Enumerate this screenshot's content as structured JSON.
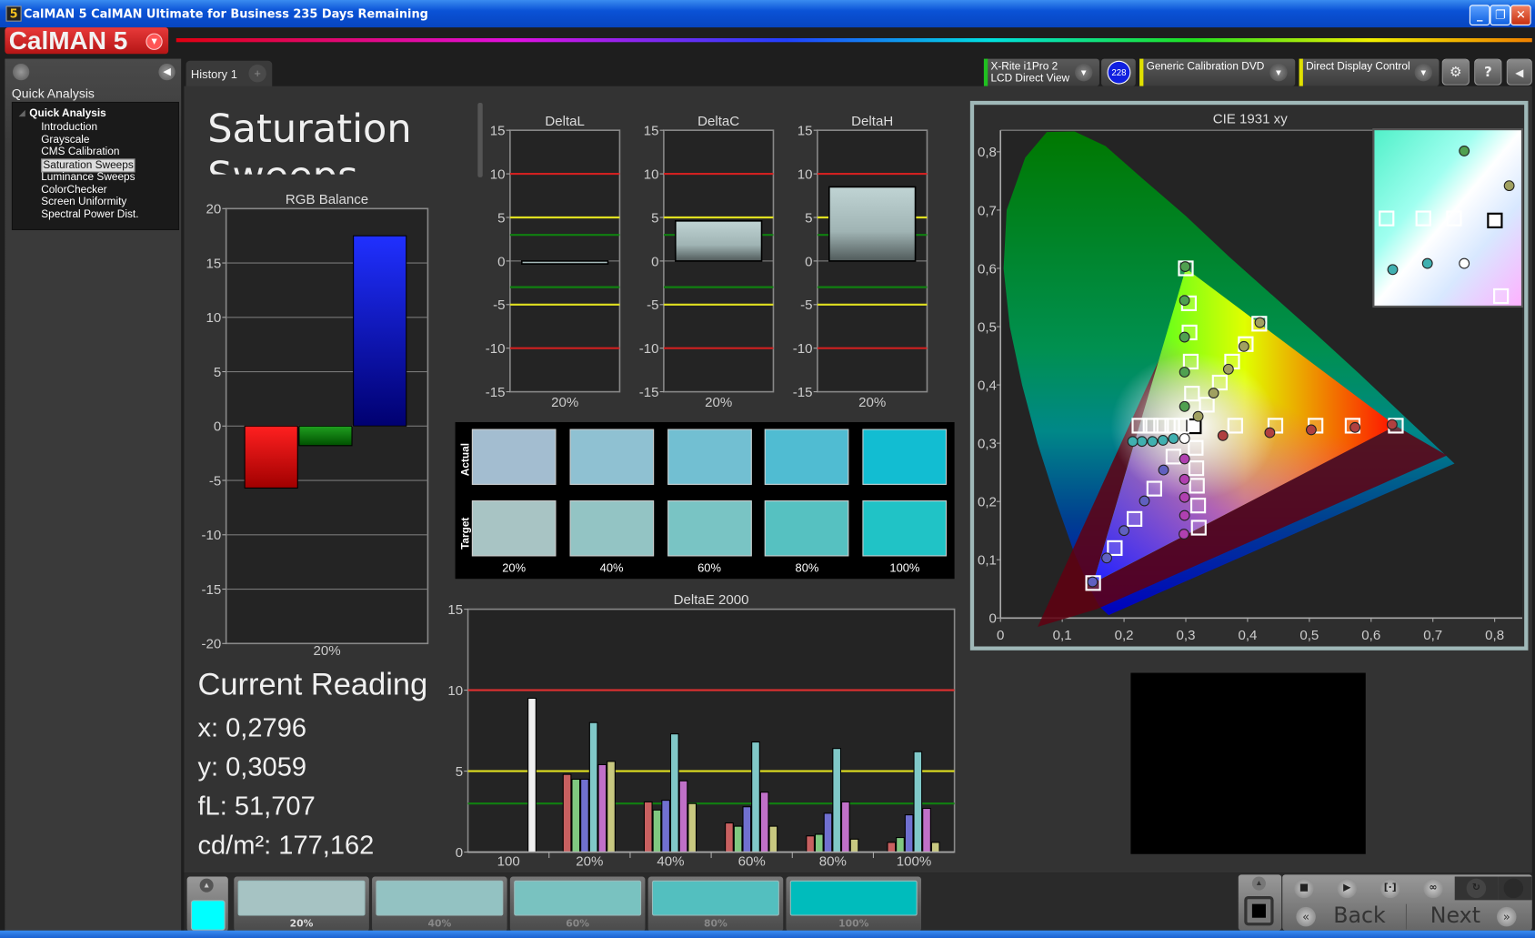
{
  "window": {
    "title": "CalMAN 5 CalMAN Ultimate for Business 235 Days Remaining",
    "app_icon": "5",
    "controls": [
      "minimize-icon",
      "restore-icon",
      "close-icon"
    ]
  },
  "logo": {
    "text": "CalMAN 5"
  },
  "sidebar": {
    "section_label": "Quick Analysis",
    "tree_root": "Quick Analysis",
    "items": [
      {
        "label": "Introduction"
      },
      {
        "label": "Grayscale"
      },
      {
        "label": "CMS Calibration"
      },
      {
        "label": "Saturation Sweeps",
        "selected": true
      },
      {
        "label": "Luminance Sweeps"
      },
      {
        "label": "ColorChecker"
      },
      {
        "label": "Screen Uniformity"
      },
      {
        "label": "Spectral Power Dist."
      }
    ]
  },
  "tabs": [
    {
      "label": "History 1"
    },
    {
      "label": "+"
    }
  ],
  "toolbar": {
    "meter": {
      "line1": "X-Rite i1Pro 2",
      "line2": "LCD Direct View",
      "color": "#20c020",
      "badge": "228"
    },
    "source": {
      "label": "Generic Calibration DVD",
      "color": "#e0e000"
    },
    "display": {
      "label": "Direct Display Control",
      "color": "#e0e000"
    },
    "buttons": [
      "gear-icon",
      "help-icon",
      "collapse-icon"
    ],
    "help_label": "?"
  },
  "page": {
    "title": "Saturation Sweeps"
  },
  "reading": {
    "title": "Current Reading",
    "x": "x: 0,2796",
    "y": "y: 0,3059",
    "fl": "fL: 51,707",
    "cdm2": "cd/m²: 177,162"
  },
  "swatches": {
    "actual_label": "Actual",
    "target_label": "Target",
    "columns": [
      {
        "label": "20%",
        "actual": "#a3bdd0",
        "target": "#a8c4c4"
      },
      {
        "label": "40%",
        "actual": "#8fc1d2",
        "target": "#93c4c4"
      },
      {
        "label": "60%",
        "actual": "#72bfd2",
        "target": "#79c4c4"
      },
      {
        "label": "80%",
        "actual": "#50bcd2",
        "target": "#56c1c1"
      },
      {
        "label": "100%",
        "actual": "#12bdd2",
        "target": "#20c3c6"
      }
    ]
  },
  "strip": {
    "current_color": "#00ffff",
    "items": [
      {
        "label": "20%",
        "color": "#a6c3c3",
        "selected": true
      },
      {
        "label": "40%",
        "color": "#93c2c2"
      },
      {
        "label": "60%",
        "color": "#79c2c0"
      },
      {
        "label": "80%",
        "color": "#53bfbf"
      },
      {
        "label": "100%",
        "color": "#00bcbc"
      }
    ]
  },
  "controls": {
    "back": "Back",
    "next": "Next",
    "buttons": [
      "stop-icon",
      "play-icon",
      "bracket-icon",
      "loop-icon",
      "refresh-icon",
      "record-icon"
    ]
  },
  "chart_data": [
    {
      "id": "rgb",
      "type": "bar",
      "title": "RGB Balance",
      "categories": [
        "20%"
      ],
      "ylim": [
        -20,
        20
      ],
      "yticks": [
        20,
        15,
        10,
        5,
        0,
        -5,
        -10,
        -15,
        -20
      ],
      "series": [
        {
          "color": "#ff0000",
          "values": [
            -5.7
          ]
        },
        {
          "color": "#009000",
          "values": [
            -1.8
          ]
        },
        {
          "color": "#0000ff",
          "values": [
            17.5
          ]
        }
      ]
    },
    {
      "id": "dl",
      "type": "bar",
      "title": "DeltaL",
      "categories": [
        "20%"
      ],
      "values": [
        -0.3
      ],
      "ylim": [
        -15,
        15
      ],
      "yticks": [
        15,
        10,
        5,
        0,
        -5,
        -10,
        -15
      ],
      "thresholds": [
        {
          "value": 10,
          "color": "#d02020"
        },
        {
          "value": 5,
          "color": "#e0e020"
        },
        {
          "value": 3,
          "color": "#108010"
        }
      ]
    },
    {
      "id": "dc",
      "type": "bar",
      "title": "DeltaC",
      "categories": [
        "20%"
      ],
      "values": [
        4.6
      ],
      "ylim": [
        -15,
        15
      ],
      "yticks": [
        15,
        10,
        5,
        0,
        -5,
        -10,
        -15
      ],
      "thresholds": [
        {
          "value": 10,
          "color": "#d02020"
        },
        {
          "value": 5,
          "color": "#e0e020"
        },
        {
          "value": 3,
          "color": "#108010"
        }
      ]
    },
    {
      "id": "dh",
      "type": "bar",
      "title": "DeltaH",
      "categories": [
        "20%"
      ],
      "values": [
        8.5
      ],
      "ylim": [
        -15,
        15
      ],
      "yticks": [
        15,
        10,
        5,
        0,
        -5,
        -10,
        -15
      ],
      "thresholds": [
        {
          "value": 10,
          "color": "#d02020"
        },
        {
          "value": 5,
          "color": "#e0e020"
        },
        {
          "value": 3,
          "color": "#108010"
        }
      ]
    },
    {
      "id": "de",
      "type": "bar",
      "title": "DeltaE 2000",
      "ylim": [
        0,
        15
      ],
      "yticks": [
        15,
        10,
        5,
        0
      ],
      "thresholds": [
        {
          "value": 10,
          "color": "#e03030"
        },
        {
          "value": 5,
          "color": "#e0e020"
        },
        {
          "value": 3,
          "color": "#108010"
        }
      ],
      "categories": [
        "100",
        "20%",
        "40%",
        "60%",
        "80%",
        "100%"
      ],
      "series_colors": {
        "white": "#f0f0f0",
        "red": "#c86060",
        "green": "#80c880",
        "blue": "#7070d0",
        "cyan": "#80c8c8",
        "magenta": "#c070c8",
        "yellow": "#c8c880"
      },
      "groups": [
        [
          {
            "c": "white",
            "v": 9.5
          }
        ],
        [
          {
            "c": "red",
            "v": 4.8
          },
          {
            "c": "green",
            "v": 4.5
          },
          {
            "c": "blue",
            "v": 4.5
          },
          {
            "c": "cyan",
            "v": 8.0
          },
          {
            "c": "magenta",
            "v": 5.4
          },
          {
            "c": "yellow",
            "v": 5.6
          }
        ],
        [
          {
            "c": "red",
            "v": 3.1
          },
          {
            "c": "green",
            "v": 2.6
          },
          {
            "c": "blue",
            "v": 3.2
          },
          {
            "c": "cyan",
            "v": 7.3
          },
          {
            "c": "magenta",
            "v": 4.4
          },
          {
            "c": "yellow",
            "v": 3.0
          }
        ],
        [
          {
            "c": "red",
            "v": 1.8
          },
          {
            "c": "green",
            "v": 1.6
          },
          {
            "c": "blue",
            "v": 2.8
          },
          {
            "c": "cyan",
            "v": 6.8
          },
          {
            "c": "magenta",
            "v": 3.7
          },
          {
            "c": "yellow",
            "v": 1.6
          }
        ],
        [
          {
            "c": "red",
            "v": 1.0
          },
          {
            "c": "green",
            "v": 1.1
          },
          {
            "c": "blue",
            "v": 2.4
          },
          {
            "c": "cyan",
            "v": 6.4
          },
          {
            "c": "magenta",
            "v": 3.1
          },
          {
            "c": "yellow",
            "v": 0.8
          }
        ],
        [
          {
            "c": "red",
            "v": 0.6
          },
          {
            "c": "green",
            "v": 0.9
          },
          {
            "c": "blue",
            "v": 2.3
          },
          {
            "c": "cyan",
            "v": 6.2
          },
          {
            "c": "magenta",
            "v": 2.7
          },
          {
            "c": "yellow",
            "v": 0.6
          }
        ]
      ]
    },
    {
      "id": "cie",
      "type": "scatter",
      "title": "CIE 1931 xy",
      "xlim": [
        0,
        0.85
      ],
      "ylim": [
        0,
        0.84
      ],
      "xticks": [
        "0",
        "0,1",
        "0,2",
        "0,3",
        "0,4",
        "0,5",
        "0,6",
        "0,7",
        "0,8"
      ],
      "yticks": [
        "0",
        "0,1",
        "0,2",
        "0,3",
        "0,4",
        "0,5",
        "0,6",
        "0,7",
        "0,8"
      ],
      "gamut": {
        "red": [
          0.64,
          0.33
        ],
        "green": [
          0.3,
          0.6
        ],
        "blue": [
          0.15,
          0.06
        ],
        "white": [
          0.313,
          0.329
        ]
      },
      "targets": {
        "white": [
          [
            0.313,
            0.329
          ]
        ],
        "red": [
          [
            0.38,
            0.33
          ],
          [
            0.445,
            0.33
          ],
          [
            0.51,
            0.33
          ],
          [
            0.57,
            0.33
          ],
          [
            0.64,
            0.33
          ]
        ],
        "green": [
          [
            0.31,
            0.385
          ],
          [
            0.308,
            0.44
          ],
          [
            0.306,
            0.49
          ],
          [
            0.305,
            0.54
          ],
          [
            0.3,
            0.6
          ]
        ],
        "blue": [
          [
            0.28,
            0.277
          ],
          [
            0.249,
            0.222
          ],
          [
            0.217,
            0.17
          ],
          [
            0.185,
            0.12
          ],
          [
            0.15,
            0.06
          ]
        ],
        "cyan": [
          [
            0.293,
            0.33
          ],
          [
            0.278,
            0.33
          ],
          [
            0.26,
            0.33
          ],
          [
            0.243,
            0.33
          ],
          [
            0.225,
            0.33
          ]
        ],
        "magenta": [
          [
            0.316,
            0.292
          ],
          [
            0.317,
            0.257
          ],
          [
            0.318,
            0.227
          ],
          [
            0.32,
            0.193
          ],
          [
            0.321,
            0.155
          ]
        ],
        "yellow": [
          [
            0.334,
            0.366
          ],
          [
            0.355,
            0.404
          ],
          [
            0.375,
            0.44
          ],
          [
            0.397,
            0.47
          ],
          [
            0.419,
            0.505
          ]
        ]
      },
      "measured": {
        "white": [
          [
            0.298,
            0.308
          ]
        ],
        "red": [
          [
            0.36,
            0.313
          ],
          [
            0.436,
            0.318
          ],
          [
            0.503,
            0.323
          ],
          [
            0.574,
            0.327
          ],
          [
            0.634,
            0.332
          ]
        ],
        "green": [
          [
            0.298,
            0.363
          ],
          [
            0.298,
            0.422
          ],
          [
            0.298,
            0.482
          ],
          [
            0.298,
            0.545
          ],
          [
            0.299,
            0.603
          ]
        ],
        "blue": [
          [
            0.264,
            0.254
          ],
          [
            0.233,
            0.201
          ],
          [
            0.2,
            0.15
          ],
          [
            0.172,
            0.103
          ],
          [
            0.149,
            0.062
          ]
        ],
        "cyan": [
          [
            0.28,
            0.308
          ],
          [
            0.263,
            0.305
          ],
          [
            0.246,
            0.303
          ],
          [
            0.229,
            0.303
          ],
          [
            0.214,
            0.303
          ]
        ],
        "magenta": [
          [
            0.298,
            0.273
          ],
          [
            0.298,
            0.238
          ],
          [
            0.298,
            0.207
          ],
          [
            0.298,
            0.176
          ],
          [
            0.297,
            0.144
          ]
        ],
        "yellow": [
          [
            0.32,
            0.346
          ],
          [
            0.345,
            0.386
          ],
          [
            0.369,
            0.427
          ],
          [
            0.394,
            0.466
          ],
          [
            0.42,
            0.507
          ]
        ]
      },
      "inset": {
        "xlim": [
          0.2536,
          0.3264
        ],
        "ylim": [
          0.2869,
          0.3736
        ]
      }
    }
  ]
}
